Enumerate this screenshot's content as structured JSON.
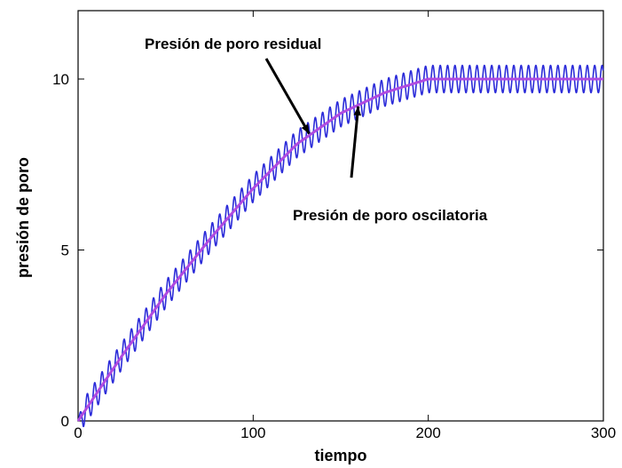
{
  "chart_data": {
    "type": "line",
    "title": "",
    "xlabel": "tiempo",
    "ylabel": "presión de poro",
    "xlim": [
      0,
      300
    ],
    "ylim": [
      0,
      12
    ],
    "xticks": [
      0,
      100,
      200,
      300
    ],
    "yticks": [
      0,
      5,
      10
    ],
    "grid": false,
    "series": [
      {
        "name": "Presión de poro oscilatoria",
        "color": "#2b2bd9",
        "oscillation_amplitude": 0.4,
        "oscillation_period": 4.2,
        "x": [
          0,
          25,
          50,
          75,
          100,
          125,
          150,
          175,
          200,
          225,
          250,
          275,
          300
        ],
        "y": [
          0,
          1.9,
          3.7,
          5.3,
          6.8,
          8.1,
          9.0,
          9.6,
          10.0,
          10.0,
          10.0,
          10.0,
          10.0
        ]
      },
      {
        "name": "Presión de poro residual",
        "color": "#b04be0",
        "x": [
          0,
          25,
          50,
          75,
          100,
          125,
          150,
          175,
          200,
          225,
          250,
          275,
          300
        ],
        "y": [
          0,
          1.9,
          3.7,
          5.3,
          6.8,
          8.1,
          9.0,
          9.6,
          10.0,
          10.0,
          10.0,
          10.0,
          10.0
        ]
      }
    ],
    "annotations": [
      {
        "text": "Presión de poro residual",
        "target_x": 132,
        "target_y": 8.4
      },
      {
        "text": "Presión de poro oscilatoria",
        "target_x": 160,
        "target_y": 9.2
      }
    ]
  }
}
